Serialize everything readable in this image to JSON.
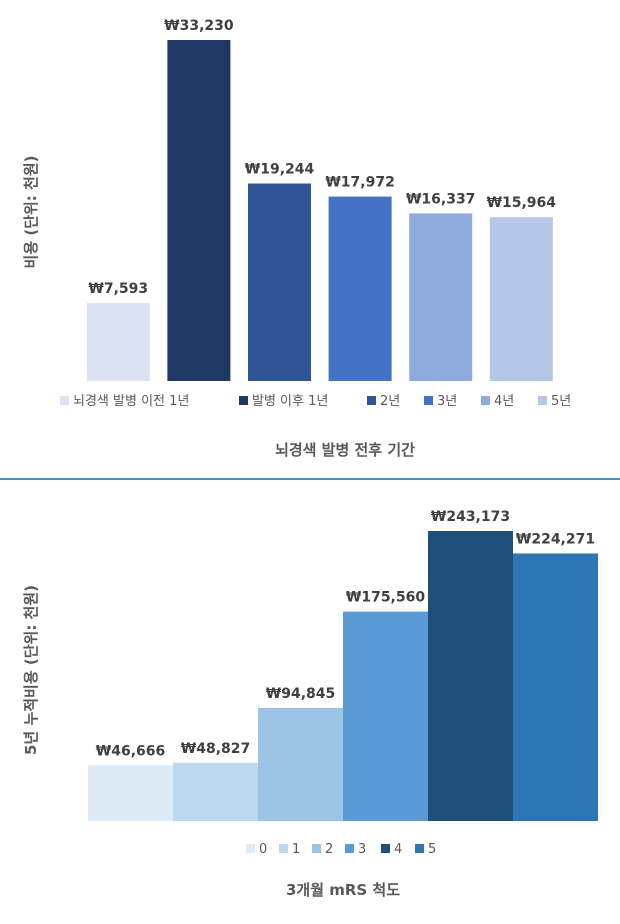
{
  "chart_data": [
    {
      "type": "bar",
      "categories": [
        "뇌경색 발병 이전 1년",
        "발병 이후 1년",
        "2년",
        "3년",
        "4년",
        "5년"
      ],
      "values": [
        7593,
        33230,
        19244,
        17972,
        16337,
        15964
      ],
      "data_labels": [
        "₩7,593",
        "₩33,230",
        "₩19,244",
        "₩17,972",
        "₩16,337",
        "₩15,964"
      ],
      "colors": [
        "#dae3f3",
        "#1f3864",
        "#2f5597",
        "#4472c4",
        "#8faadc",
        "#b4c7e7"
      ],
      "xlabel": "뇌경색 발병 전후 기간",
      "ylabel": "비용 (단위: 천원)",
      "ylim": [
        0,
        35000
      ],
      "grid": false,
      "legend_position": "bottom"
    },
    {
      "type": "bar",
      "categories": [
        "0",
        "1",
        "2",
        "3",
        "4",
        "5"
      ],
      "values": [
        46666,
        48827,
        94845,
        175560,
        243173,
        224271
      ],
      "data_labels": [
        "₩46,666",
        "₩48,827",
        "₩94,845",
        "₩175,560",
        "₩243,173",
        "₩224,271"
      ],
      "colors": [
        "#ddebf7",
        "#bdd7ee",
        "#9dc3e6",
        "#5b9bd5",
        "#1f4e79",
        "#2e75b6"
      ],
      "xlabel": "3개월 mRS 척도",
      "ylabel": "5년 누적비용 (단위: 천원)",
      "ylim": [
        0,
        260000
      ],
      "grid": false,
      "legend_position": "bottom"
    }
  ]
}
